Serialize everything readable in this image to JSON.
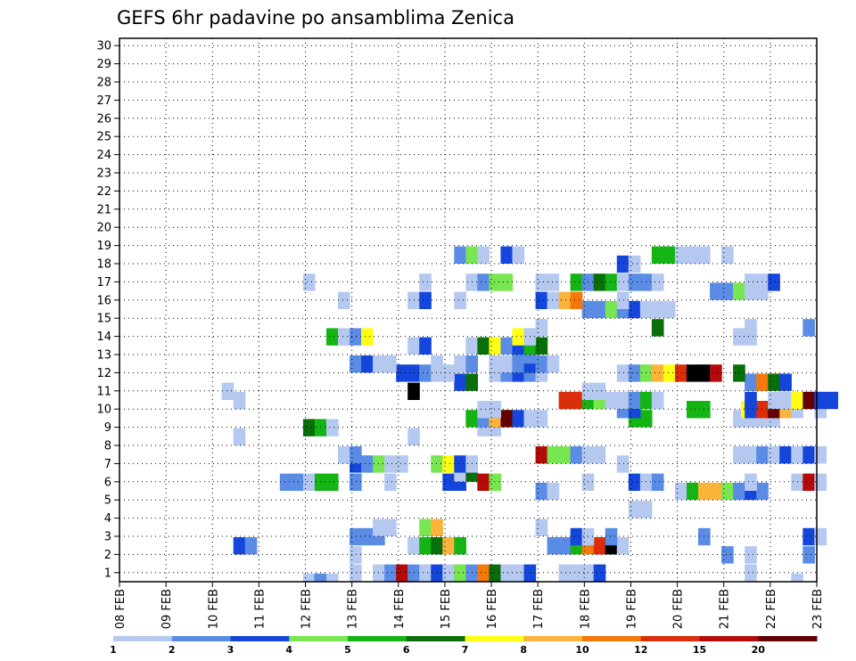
{
  "chart_data": {
    "type": "heatmap",
    "title": "GEFS 6hr padavine po ansamblima Zenica",
    "xlabel": "",
    "ylabel": "",
    "y_categories": [
      "1",
      "2",
      "3",
      "4",
      "5",
      "6",
      "7",
      "8",
      "9",
      "10",
      "11",
      "12",
      "13",
      "14",
      "15",
      "16",
      "17",
      "18",
      "19",
      "20",
      "21",
      "22",
      "23",
      "24",
      "25",
      "26",
      "27",
      "28",
      "29",
      "30"
    ],
    "x_tick_labels": [
      "08 FEB",
      "09 FEB",
      "10 FEB",
      "11 FEB",
      "12 FEB",
      "13 FEB",
      "14 FEB",
      "15 FEB",
      "16 FEB",
      "17 FEB",
      "18 FEB",
      "19 FEB",
      "20 FEB",
      "21 FEB",
      "22 FEB",
      "23 FEB"
    ],
    "x_range_days": [
      0,
      15
    ],
    "grid": true,
    "colorbar": {
      "levels": [
        "1",
        "2",
        "3",
        "4",
        "5",
        "6",
        "7",
        "8",
        "10",
        "12",
        "15",
        "20"
      ],
      "colors": [
        "#b4c8f0",
        "#5a8ce6",
        "#1446dc",
        "#78e650",
        "#14b414",
        "#0a6e0a",
        "#ffff14",
        "#fab43c",
        "#f5780a",
        "#dc2d0a",
        "#b40a0a",
        "#640000"
      ]
    },
    "cells": [
      [
        4.08,
        1,
        1
      ],
      [
        4.32,
        1,
        2
      ],
      [
        4.58,
        1,
        1
      ],
      [
        6.58,
        2,
        1
      ],
      [
        10.08,
        1,
        5
      ],
      [
        10.32,
        1,
        7
      ],
      [
        13.58,
        2,
        1
      ],
      [
        14.58,
        1,
        1
      ],
      [
        5.08,
        2,
        1
      ],
      [
        5.58,
        2,
        1
      ],
      [
        5.83,
        2,
        2
      ],
      [
        6.08,
        2,
        11
      ],
      [
        6.33,
        2,
        2
      ],
      [
        6.58,
        2,
        1
      ],
      [
        6.83,
        2,
        3
      ],
      [
        7.08,
        2,
        1
      ],
      [
        7.33,
        2,
        4
      ],
      [
        7.58,
        2,
        2
      ],
      [
        7.83,
        2,
        9
      ],
      [
        8.08,
        2,
        6
      ],
      [
        8.33,
        2,
        1
      ],
      [
        8.58,
        2,
        1
      ],
      [
        8.83,
        2,
        3
      ],
      [
        9.58,
        2,
        1
      ],
      [
        9.83,
        2,
        1
      ],
      [
        10.08,
        2,
        1
      ],
      [
        10.33,
        2,
        3
      ],
      [
        5.08,
        4,
        1
      ],
      [
        13.08,
        4,
        2
      ],
      [
        13.58,
        4,
        1
      ],
      [
        14.83,
        4,
        2
      ],
      [
        2.58,
        5,
        3
      ],
      [
        2.83,
        5,
        2
      ],
      [
        6.33,
        5,
        1
      ],
      [
        6.58,
        5,
        5
      ],
      [
        6.83,
        5,
        6
      ],
      [
        7.08,
        5,
        8
      ],
      [
        7.33,
        5,
        5
      ],
      [
        9.33,
        5,
        2
      ],
      [
        9.58,
        5,
        2
      ],
      [
        9.83,
        5,
        5
      ],
      [
        10.08,
        5,
        9
      ],
      [
        10.33,
        5,
        10
      ],
      [
        10.58,
        5,
        13
      ],
      [
        10.83,
        5,
        1
      ],
      [
        5.08,
        6,
        2
      ],
      [
        5.33,
        6,
        2
      ],
      [
        5.58,
        6,
        2
      ],
      [
        9.83,
        6,
        3
      ],
      [
        10.08,
        6,
        1
      ],
      [
        10.58,
        6,
        2
      ],
      [
        12.58,
        6,
        2
      ],
      [
        14.83,
        6,
        3
      ],
      [
        15.08,
        6,
        1
      ],
      [
        5.58,
        7,
        1
      ],
      [
        5.83,
        7,
        1
      ],
      [
        6.58,
        7,
        4
      ],
      [
        6.83,
        7,
        8
      ],
      [
        9.08,
        7,
        1
      ],
      [
        11.08,
        9,
        1
      ],
      [
        11.33,
        9,
        1
      ],
      [
        9.08,
        11,
        2
      ],
      [
        9.33,
        11,
        1
      ],
      [
        12.08,
        11,
        1
      ],
      [
        12.33,
        11,
        5
      ],
      [
        12.58,
        11,
        8
      ],
      [
        12.83,
        11,
        8
      ],
      [
        13.08,
        11,
        4
      ],
      [
        13.33,
        11,
        2
      ],
      [
        13.58,
        11,
        3
      ],
      [
        13.83,
        11,
        2
      ],
      [
        3.58,
        12,
        2
      ],
      [
        3.83,
        12,
        2
      ],
      [
        4.08,
        12,
        1
      ],
      [
        4.33,
        12,
        5
      ],
      [
        4.58,
        12,
        5
      ],
      [
        5.08,
        12,
        2
      ],
      [
        5.83,
        12,
        1
      ],
      [
        7.08,
        12,
        3
      ],
      [
        7.33,
        12,
        3
      ],
      [
        7.83,
        12,
        11
      ],
      [
        8.08,
        12,
        4
      ],
      [
        10.08,
        12,
        1
      ],
      [
        11.08,
        12,
        3
      ],
      [
        11.33,
        12,
        1
      ],
      [
        11.58,
        12,
        2
      ],
      [
        13.58,
        12,
        1
      ],
      [
        14.58,
        12,
        1
      ],
      [
        14.83,
        12,
        11
      ],
      [
        15.08,
        12,
        1
      ],
      [
        7.33,
        13,
        1
      ],
      [
        7.58,
        13,
        6
      ],
      [
        5.08,
        14,
        3
      ],
      [
        5.33,
        14,
        2
      ],
      [
        5.58,
        14,
        4
      ],
      [
        5.83,
        14,
        1
      ],
      [
        6.08,
        14,
        1
      ],
      [
        6.83,
        14,
        4
      ],
      [
        7.08,
        14,
        7
      ],
      [
        7.33,
        14,
        3
      ],
      [
        7.58,
        14,
        1
      ],
      [
        10.83,
        14,
        1
      ],
      [
        4.83,
        15,
        1
      ],
      [
        5.08,
        15,
        2
      ],
      [
        9.08,
        15,
        11
      ],
      [
        9.33,
        15,
        4
      ],
      [
        9.58,
        15,
        4
      ],
      [
        9.83,
        15,
        2
      ],
      [
        10.08,
        15,
        1
      ],
      [
        10.33,
        15,
        1
      ],
      [
        13.33,
        15,
        1
      ],
      [
        13.58,
        15,
        1
      ],
      [
        13.83,
        15,
        2
      ],
      [
        14.08,
        15,
        1
      ],
      [
        14.33,
        15,
        3
      ],
      [
        14.58,
        15,
        1
      ],
      [
        14.83,
        15,
        3
      ],
      [
        15.08,
        15,
        1
      ],
      [
        2.58,
        17,
        1
      ],
      [
        6.33,
        17,
        1
      ],
      [
        4.08,
        18,
        6
      ],
      [
        4.33,
        18,
        5
      ],
      [
        4.58,
        18,
        1
      ],
      [
        7.83,
        18,
        1
      ],
      [
        8.08,
        18,
        1
      ],
      [
        7.58,
        19,
        5
      ],
      [
        7.83,
        19,
        2
      ],
      [
        8.08,
        19,
        8
      ],
      [
        8.33,
        19,
        12
      ],
      [
        8.58,
        19,
        3
      ],
      [
        8.83,
        19,
        1
      ],
      [
        9.08,
        19,
        1
      ],
      [
        11.08,
        19,
        5
      ],
      [
        11.33,
        19,
        5
      ],
      [
        13.33,
        19,
        1
      ],
      [
        13.58,
        19,
        1
      ],
      [
        13.83,
        19,
        1
      ],
      [
        14.08,
        19,
        1
      ],
      [
        7.83,
        20,
        1
      ],
      [
        8.08,
        20,
        1
      ],
      [
        10.83,
        20,
        2
      ],
      [
        11.08,
        20,
        3
      ],
      [
        12.33,
        20,
        5
      ],
      [
        12.58,
        20,
        5
      ],
      [
        13.5,
        20,
        7
      ],
      [
        13.58,
        20,
        3
      ],
      [
        13.83,
        20,
        10
      ],
      [
        14.08,
        20,
        12
      ],
      [
        14.33,
        20,
        8
      ],
      [
        14.58,
        20,
        1
      ],
      [
        15.08,
        20,
        1
      ],
      [
        2.58,
        21,
        1
      ],
      [
        9.58,
        21,
        10
      ],
      [
        9.83,
        21,
        10
      ],
      [
        10.08,
        21,
        5
      ],
      [
        10.33,
        21,
        4
      ],
      [
        10.58,
        21,
        1
      ],
      [
        10.83,
        21,
        1
      ],
      [
        11.08,
        21,
        2
      ],
      [
        11.33,
        21,
        5
      ],
      [
        11.58,
        21,
        1
      ],
      [
        13.58,
        21,
        3
      ],
      [
        14.08,
        21,
        1
      ],
      [
        14.33,
        21,
        1
      ],
      [
        14.58,
        21,
        7
      ],
      [
        14.83,
        21,
        12
      ],
      [
        15.08,
        21,
        3
      ],
      [
        15.33,
        21,
        3
      ],
      [
        2.33,
        22,
        1
      ],
      [
        6.33,
        22,
        13
      ],
      [
        10.08,
        22,
        1
      ],
      [
        10.33,
        22,
        1
      ],
      [
        7.33,
        23,
        3
      ],
      [
        7.58,
        23,
        6
      ],
      [
        13.58,
        23,
        2
      ],
      [
        13.83,
        23,
        9
      ],
      [
        14.08,
        23,
        6
      ],
      [
        14.33,
        23,
        3
      ],
      [
        6.08,
        24,
        3
      ],
      [
        6.33,
        24,
        3
      ],
      [
        6.58,
        24,
        2
      ],
      [
        6.83,
        24,
        1
      ],
      [
        7.08,
        24,
        1
      ],
      [
        8.08,
        24,
        1
      ],
      [
        8.33,
        24,
        2
      ],
      [
        8.58,
        24,
        3
      ],
      [
        8.83,
        24,
        2
      ],
      [
        9.08,
        24,
        1
      ],
      [
        10.83,
        24,
        1
      ],
      [
        11.08,
        24,
        2
      ],
      [
        11.33,
        24,
        4
      ],
      [
        11.58,
        24,
        8
      ],
      [
        11.83,
        24,
        7
      ],
      [
        12.08,
        24,
        10
      ],
      [
        12.33,
        24,
        13
      ],
      [
        12.58,
        24,
        13
      ],
      [
        12.83,
        24,
        11
      ],
      [
        13.33,
        24,
        6
      ],
      [
        5.08,
        25,
        2
      ],
      [
        5.33,
        25,
        3
      ],
      [
        5.58,
        25,
        1
      ],
      [
        5.83,
        25,
        1
      ],
      [
        6.83,
        25,
        1
      ],
      [
        7.33,
        25,
        1
      ],
      [
        7.58,
        25,
        2
      ],
      [
        8.08,
        25,
        1
      ],
      [
        8.33,
        25,
        1
      ],
      [
        8.58,
        25,
        2
      ],
      [
        8.83,
        25,
        3
      ],
      [
        9.08,
        25,
        2
      ],
      [
        9.33,
        25,
        1
      ],
      [
        8.58,
        26,
        2
      ],
      [
        8.83,
        26,
        2
      ],
      [
        6.33,
        27,
        1
      ],
      [
        6.58,
        27,
        3
      ],
      [
        7.58,
        27,
        1
      ],
      [
        7.83,
        27,
        6
      ],
      [
        8.08,
        27,
        7
      ],
      [
        8.33,
        27,
        2
      ],
      [
        8.58,
        27,
        3
      ],
      [
        8.83,
        27,
        5
      ],
      [
        9.08,
        27,
        6
      ],
      [
        4.58,
        28,
        5
      ],
      [
        4.83,
        28,
        1
      ],
      [
        5.08,
        28,
        2
      ],
      [
        5.33,
        28,
        7
      ],
      [
        8.58,
        28,
        7
      ],
      [
        8.83,
        28,
        1
      ],
      [
        13.33,
        28,
        1
      ],
      [
        13.58,
        28,
        1
      ],
      [
        9.08,
        29,
        1
      ],
      [
        11.58,
        29,
        6
      ],
      [
        13.58,
        29,
        1
      ],
      [
        14.83,
        29,
        2
      ],
      [
        10.08,
        31,
        2
      ],
      [
        10.33,
        31,
        2
      ],
      [
        10.58,
        31,
        4
      ],
      [
        10.83,
        31,
        2
      ],
      [
        11.08,
        31,
        3
      ],
      [
        11.33,
        31,
        1
      ],
      [
        11.58,
        31,
        1
      ],
      [
        11.83,
        31,
        1
      ],
      [
        4.83,
        32,
        1
      ],
      [
        6.33,
        32,
        1
      ],
      [
        6.58,
        32,
        3
      ],
      [
        7.33,
        32,
        1
      ],
      [
        9.08,
        32,
        3
      ],
      [
        9.33,
        32,
        1
      ],
      [
        9.58,
        32,
        8
      ],
      [
        9.83,
        32,
        9
      ],
      [
        10.83,
        32,
        1
      ],
      [
        12.83,
        33,
        2
      ],
      [
        13.08,
        33,
        2
      ],
      [
        13.33,
        33,
        4
      ],
      [
        13.58,
        33,
        1
      ],
      [
        13.83,
        33,
        1
      ],
      [
        4.08,
        34,
        1
      ],
      [
        6.58,
        34,
        1
      ],
      [
        7.58,
        34,
        1
      ],
      [
        7.83,
        34,
        2
      ],
      [
        8.08,
        34,
        4
      ],
      [
        8.33,
        34,
        4
      ],
      [
        9.08,
        34,
        1
      ],
      [
        9.33,
        34,
        1
      ],
      [
        9.83,
        34,
        5
      ],
      [
        10.08,
        34,
        2
      ],
      [
        10.33,
        34,
        6
      ],
      [
        10.58,
        34,
        5
      ],
      [
        10.83,
        34,
        1
      ],
      [
        11.08,
        34,
        2
      ],
      [
        11.33,
        34,
        2
      ],
      [
        11.58,
        34,
        1
      ],
      [
        13.58,
        34,
        1
      ],
      [
        13.83,
        34,
        1
      ],
      [
        14.08,
        34,
        3
      ],
      [
        10.83,
        36,
        3
      ],
      [
        11.08,
        36,
        1
      ],
      [
        7.33,
        37,
        2
      ],
      [
        7.58,
        37,
        4
      ],
      [
        7.83,
        37,
        1
      ],
      [
        8.33,
        37,
        3
      ],
      [
        8.58,
        37,
        1
      ],
      [
        11.58,
        37,
        5
      ],
      [
        11.83,
        37,
        5
      ],
      [
        12.08,
        37,
        1
      ],
      [
        12.33,
        37,
        1
      ],
      [
        12.58,
        37,
        1
      ],
      [
        13.08,
        37,
        1
      ]
    ]
  }
}
